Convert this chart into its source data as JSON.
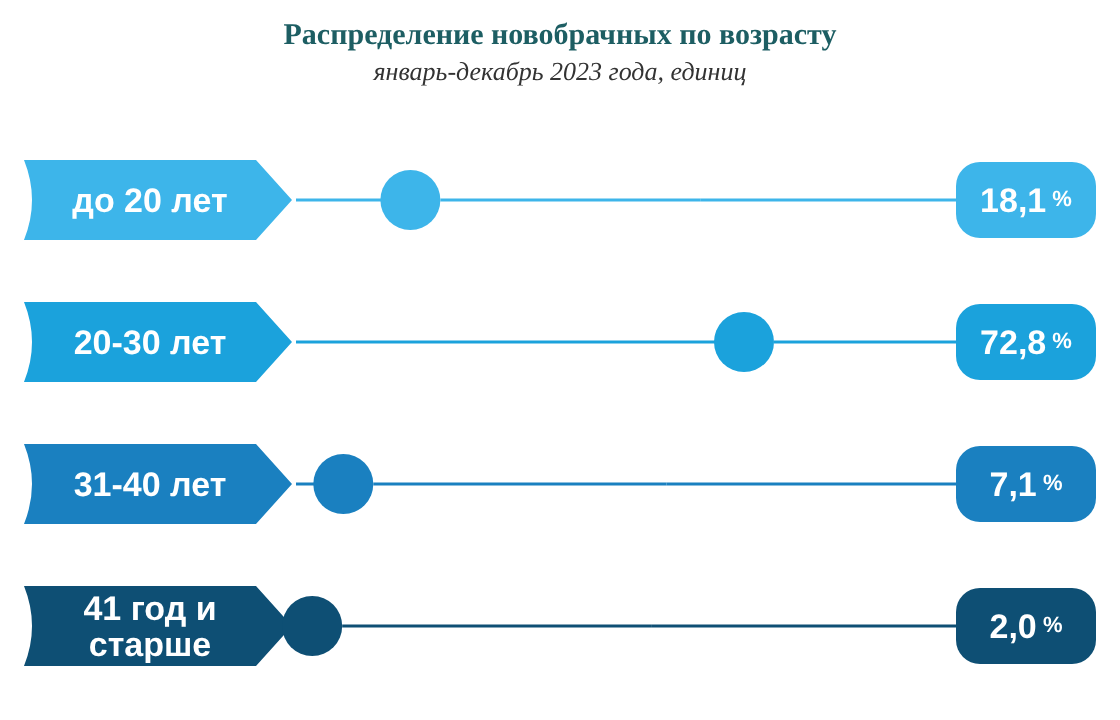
{
  "chart_data": {
    "type": "lollipop",
    "orientation": "horizontal",
    "title": "Распределение новобрачных по возрасту",
    "subtitle": "январь-декабрь 2023 года, единиц",
    "categories": [
      "до 20 лет",
      "20-30 лет",
      "31-40 лет",
      "41 год и старше"
    ],
    "values": [
      18.1,
      72.8,
      7.1,
      2.0
    ],
    "colors": [
      "#3db5ea",
      "#1ba2dc",
      "#1a80c0",
      "#0e4f74"
    ],
    "value_labels": [
      "18,1 %",
      "72,8 %",
      "7,1 %",
      "2,0 %"
    ],
    "grid": "y"
  }
}
